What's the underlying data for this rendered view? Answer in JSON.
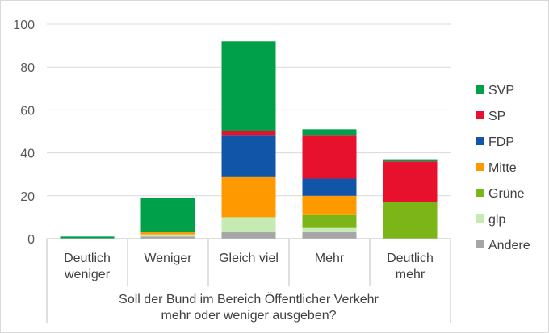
{
  "chart_data": {
    "type": "bar",
    "stacked": true,
    "categories": [
      [
        "Deutlich",
        "weniger"
      ],
      [
        "Weniger"
      ],
      [
        "Gleich viel"
      ],
      [
        "Mehr"
      ],
      [
        "Deutlich",
        "mehr"
      ]
    ],
    "series": [
      {
        "name": "Andere",
        "color": "#a6a6a6",
        "values": [
          0,
          1,
          3,
          3,
          0
        ]
      },
      {
        "name": "glp",
        "color": "#c6eab4",
        "values": [
          0,
          1,
          7,
          2,
          0
        ]
      },
      {
        "name": "Grüne",
        "color": "#7cb518",
        "values": [
          0,
          0,
          0,
          6,
          17
        ]
      },
      {
        "name": "Mitte",
        "color": "#ff9900",
        "values": [
          0,
          1,
          19,
          9,
          0
        ]
      },
      {
        "name": "FDP",
        "color": "#1155a8",
        "values": [
          0,
          0,
          19,
          8,
          0
        ]
      },
      {
        "name": "SP",
        "color": "#e8112d",
        "values": [
          0,
          0,
          2,
          20,
          19
        ]
      },
      {
        "name": "SVP",
        "color": "#00a04a",
        "values": [
          1,
          16,
          42,
          3,
          1
        ]
      }
    ],
    "legend_order": [
      "SVP",
      "SP",
      "FDP",
      "Mitte",
      "Grüne",
      "glp",
      "Andere"
    ],
    "legend_position": "right",
    "xlabel": [
      "Soll der Bund im Bereich Öffentlicher Verkehr",
      "mehr oder weniger ausgeben?"
    ],
    "ylabel": "",
    "ylim": [
      0,
      100
    ],
    "yticks": [
      0,
      20,
      40,
      60,
      80,
      100
    ],
    "grid": true,
    "gridColor": "#d9d9d9"
  }
}
